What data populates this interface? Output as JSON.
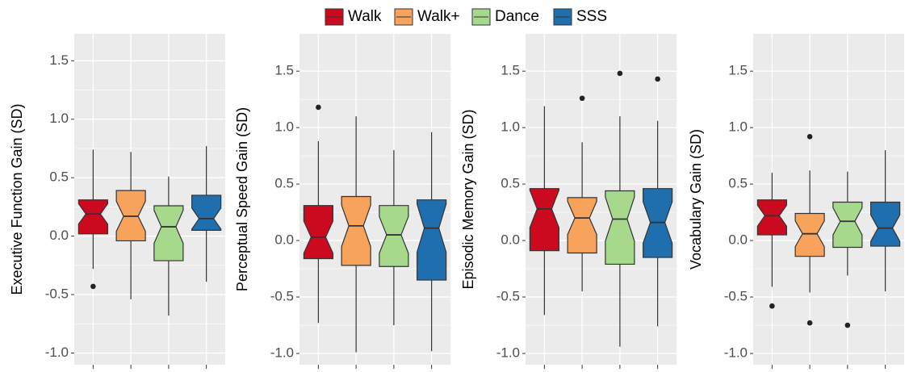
{
  "legend": {
    "items": [
      {
        "name": "Walk",
        "color": "#cc0a1f"
      },
      {
        "name": "Walk+",
        "color": "#f7a35c"
      },
      {
        "name": "Dance",
        "color": "#a6d98c"
      },
      {
        "name": "SSS",
        "color": "#1f6faf"
      }
    ]
  },
  "chart_data": [
    {
      "type": "box",
      "y_label": "Executive Function Gain (SD)",
      "ylim": [
        -1.1,
        1.73
      ],
      "yticks": [
        {
          "value": -1.0,
          "label": "-1.0"
        },
        -0.5,
        {
          "value": 0.0,
          "label": "0.0"
        },
        0.5,
        {
          "value": 1.0,
          "label": "1.0"
        },
        1.5
      ],
      "grid": true,
      "boxes": [
        {
          "low": -0.28,
          "q1": 0.02,
          "median": 0.19,
          "q3": 0.31,
          "high": 0.74,
          "outliers": [
            -0.43
          ]
        },
        {
          "low": -0.54,
          "q1": -0.04,
          "median": 0.17,
          "q3": 0.39,
          "high": 0.72,
          "outliers": []
        },
        {
          "low": -0.68,
          "q1": -0.21,
          "median": 0.08,
          "q3": 0.26,
          "high": 0.51,
          "outliers": []
        },
        {
          "low": -0.39,
          "q1": 0.05,
          "median": 0.15,
          "q3": 0.35,
          "high": 0.77,
          "outliers": []
        }
      ]
    },
    {
      "type": "box",
      "y_label": "Perceptual Speed Gain (SD)",
      "ylim": [
        -1.1,
        1.83
      ],
      "yticks": [
        {
          "value": -1.0,
          "label": "-1.0"
        },
        -0.5,
        {
          "value": 0.0,
          "label": "0.0"
        },
        0.5,
        {
          "value": 1.0,
          "label": "1.0"
        },
        1.5
      ],
      "grid": true,
      "boxes": [
        {
          "low": -0.73,
          "q1": -0.16,
          "median": 0.03,
          "q3": 0.31,
          "high": 0.88,
          "outliers": [
            1.18
          ]
        },
        {
          "low": -0.99,
          "q1": -0.22,
          "median": 0.13,
          "q3": 0.39,
          "high": 1.1,
          "outliers": []
        },
        {
          "low": -0.75,
          "q1": -0.23,
          "median": 0.05,
          "q3": 0.31,
          "high": 0.8,
          "outliers": []
        },
        {
          "low": -0.98,
          "q1": -0.35,
          "median": 0.11,
          "q3": 0.36,
          "high": 0.96,
          "outliers": []
        }
      ]
    },
    {
      "type": "box",
      "y_label": "Episodic Memory Gain (SD)",
      "ylim": [
        -1.1,
        1.83
      ],
      "yticks": [
        {
          "value": -1.0,
          "label": "-1.0"
        },
        -0.5,
        {
          "value": 0.0,
          "label": "0.0"
        },
        0.5,
        {
          "value": 1.0,
          "label": "1.0"
        },
        1.5
      ],
      "grid": true,
      "boxes": [
        {
          "low": -0.66,
          "q1": -0.09,
          "median": 0.28,
          "q3": 0.46,
          "high": 1.19,
          "outliers": []
        },
        {
          "low": -0.45,
          "q1": -0.11,
          "median": 0.2,
          "q3": 0.38,
          "high": 0.87,
          "outliers": [
            1.26
          ]
        },
        {
          "low": -0.94,
          "q1": -0.21,
          "median": 0.19,
          "q3": 0.44,
          "high": 1.1,
          "outliers": [
            1.48
          ]
        },
        {
          "low": -0.76,
          "q1": -0.15,
          "median": 0.16,
          "q3": 0.46,
          "high": 1.06,
          "outliers": [
            1.43
          ]
        }
      ]
    },
    {
      "type": "box",
      "y_label": "Vocabulary Gain (SD)",
      "ylim": [
        -1.1,
        1.83
      ],
      "yticks": [
        {
          "value": -1.0,
          "label": "-1.0"
        },
        -0.5,
        {
          "value": 0.0,
          "label": "0.0"
        },
        0.5,
        {
          "value": 1.0,
          "label": "1.0"
        },
        1.5
      ],
      "grid": true,
      "boxes": [
        {
          "low": -0.41,
          "q1": 0.05,
          "median": 0.22,
          "q3": 0.36,
          "high": 0.6,
          "outliers": [
            -0.58
          ]
        },
        {
          "low": -0.46,
          "q1": -0.14,
          "median": 0.06,
          "q3": 0.24,
          "high": 0.62,
          "outliers": [
            0.92,
            -0.73
          ]
        },
        {
          "low": -0.31,
          "q1": -0.06,
          "median": 0.17,
          "q3": 0.34,
          "high": 0.61,
          "outliers": [
            -0.75
          ]
        },
        {
          "low": -0.45,
          "q1": -0.05,
          "median": 0.11,
          "q3": 0.34,
          "high": 0.8,
          "outliers": []
        }
      ]
    }
  ]
}
